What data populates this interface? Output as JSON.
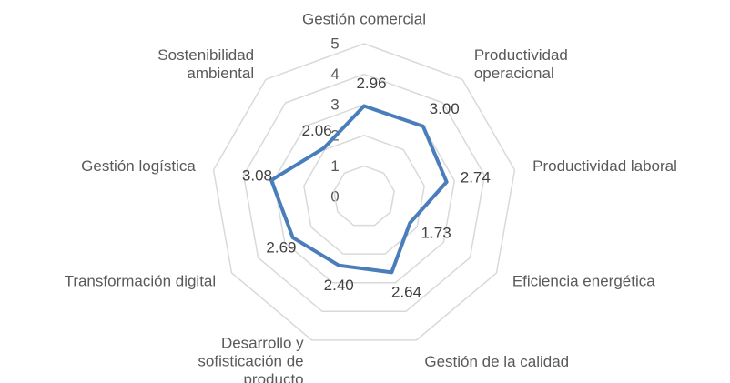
{
  "chart_data": {
    "type": "radar",
    "categories": [
      "Gestión comercial",
      "Productividad\noperacional",
      "Productividad laboral",
      "Eficiencia energética",
      "Gestión de la calidad",
      "Desarrollo y\nsofisticación de\nproducto",
      "Transformación digital",
      "Gestión logística",
      "Sostenibilidad\nambiental"
    ],
    "values": [
      2.96,
      3.0,
      2.74,
      1.73,
      2.64,
      2.4,
      2.69,
      3.08,
      2.06
    ],
    "value_labels": [
      "2.96",
      "3.00",
      "2.74",
      "1.73",
      "2.64",
      "2.40",
      "2.69",
      "3.08",
      "2.06"
    ],
    "color": "#4a7ebb",
    "ylim": [
      0,
      5
    ],
    "yticks": [
      0,
      1,
      2,
      3,
      4,
      5
    ],
    "grid": true
  }
}
